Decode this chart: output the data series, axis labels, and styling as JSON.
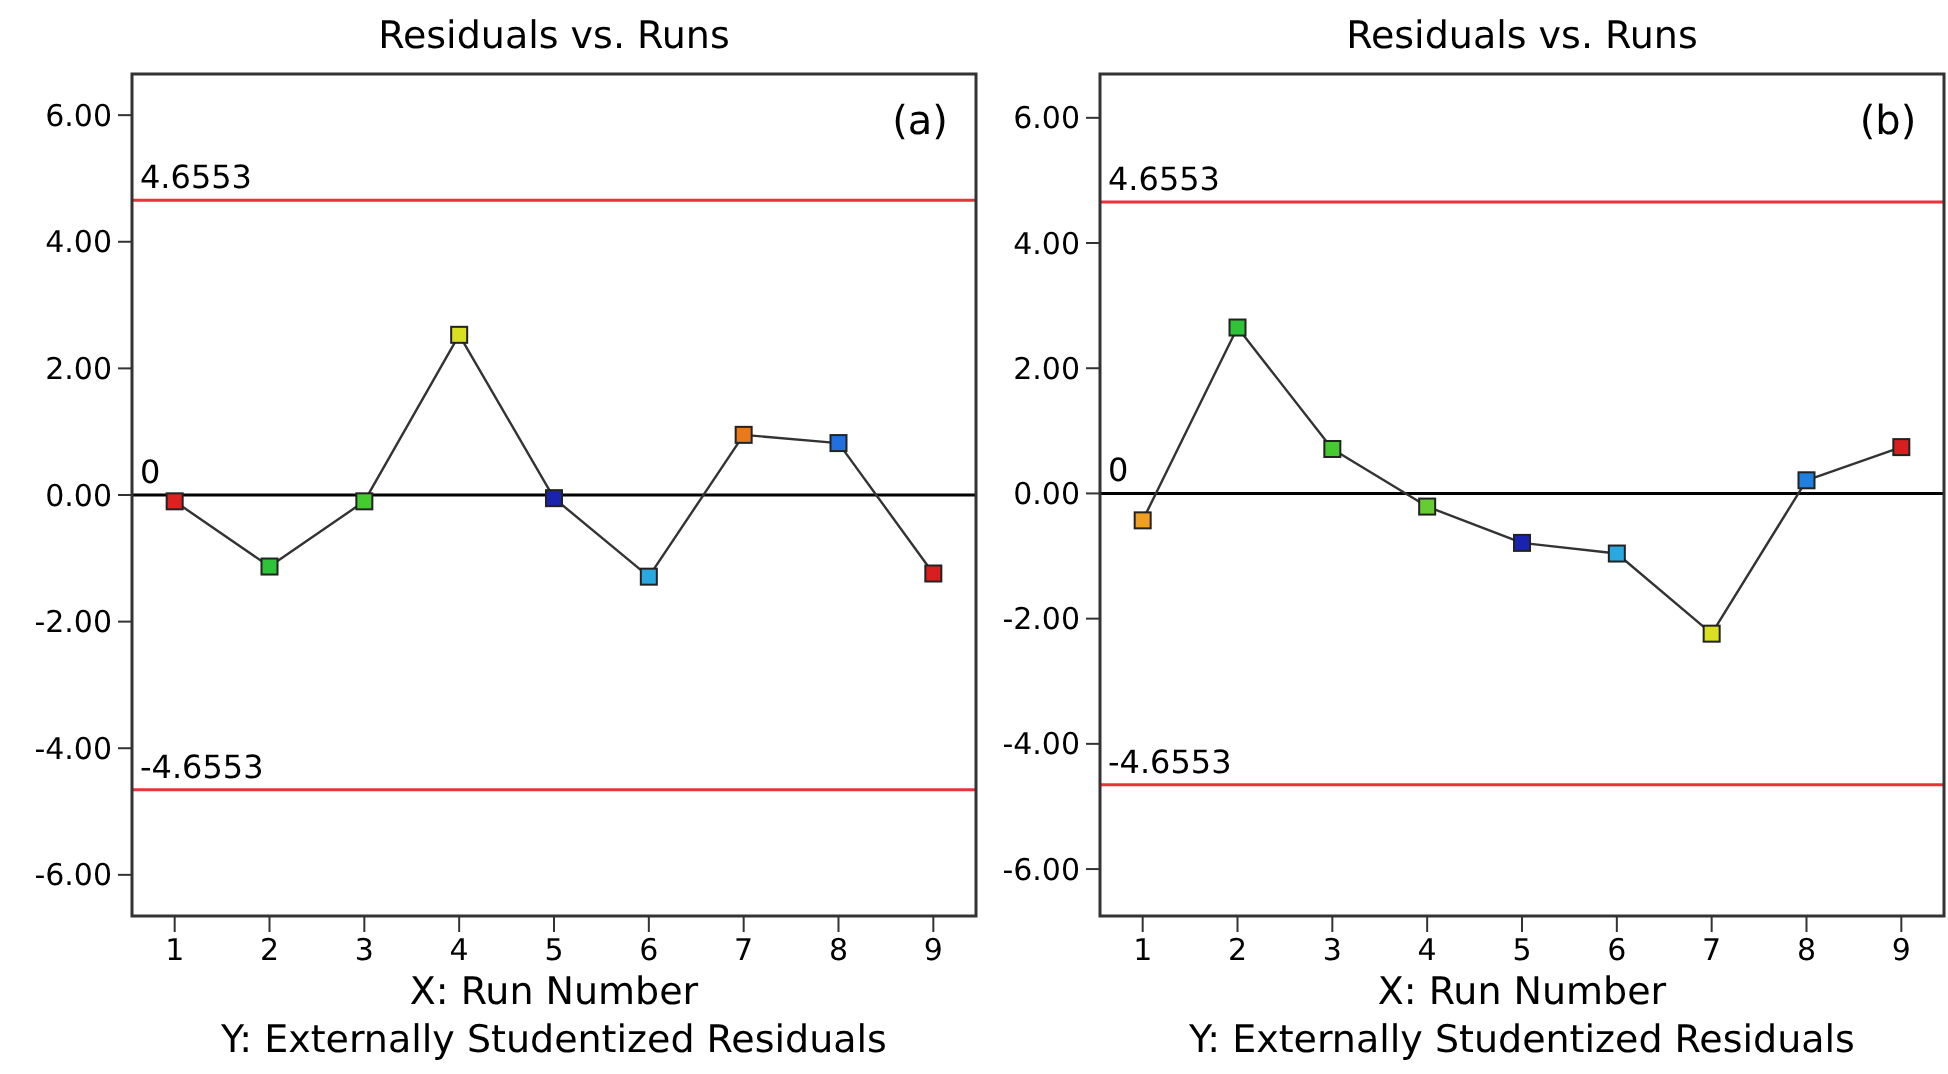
{
  "chart_data": [
    {
      "type": "line",
      "title": "Residuals vs. Runs",
      "xlabel": "X: Run Number",
      "annotations": [
        "(a)",
        "Y: Externally Studentized Residuals"
      ],
      "x": [
        1,
        2,
        3,
        4,
        5,
        6,
        7,
        8,
        9
      ],
      "series": [
        {
          "color": "#333333",
          "colors": [
            "#e0201e",
            "#2ec43a",
            "#44cc2e",
            "#d8e020",
            "#1a22b0",
            "#2aa8e0",
            "#e87a1a",
            "#2070e0",
            "#d81e1e"
          ],
          "values": [
            -0.1,
            -1.13,
            -0.1,
            2.53,
            -0.05,
            -1.29,
            0.95,
            0.82,
            -1.24
          ]
        }
      ],
      "marker": "square",
      "line_style": "solid",
      "xlim": [
        0.55,
        9.45
      ],
      "xticks": [
        1,
        2,
        3,
        4,
        5,
        6,
        7,
        8,
        9
      ],
      "ylim": [
        -6.65,
        6.65
      ],
      "yticks": [
        {
          "value": -6,
          "label": "-6.00"
        },
        {
          "value": -4,
          "label": "-4.00"
        },
        {
          "value": -2,
          "label": "-2.00"
        },
        {
          "value": 0,
          "label": "0.00"
        },
        {
          "value": 2,
          "label": "2.00"
        },
        {
          "value": 4,
          "label": "4.00"
        },
        {
          "value": 6,
          "label": "6.00"
        }
      ],
      "ref_lines": [
        {
          "axis": "y",
          "value": 4.6553,
          "label": "4.6553",
          "color": "#e8333a"
        },
        {
          "axis": "y",
          "value": 0,
          "label": "0",
          "color": "#000000"
        },
        {
          "axis": "y",
          "value": -4.6553,
          "label": "-4.6553",
          "color": "#e8333a"
        }
      ]
    },
    {
      "type": "line",
      "title": "Residuals vs. Runs",
      "xlabel": "X: Run Number",
      "annotations": [
        "(b)",
        "Y: Externally Studentized Residuals"
      ],
      "x": [
        1,
        2,
        3,
        4,
        5,
        6,
        7,
        8,
        9
      ],
      "series": [
        {
          "color": "#333333",
          "colors": [
            "#f0a020",
            "#2ec43a",
            "#44cc2e",
            "#66cc33",
            "#1a22b0",
            "#2aa8e0",
            "#d8e020",
            "#2080e0",
            "#d81e1e"
          ],
          "values": [
            -0.43,
            2.65,
            0.71,
            -0.21,
            -0.79,
            -0.96,
            -2.24,
            0.21,
            0.74
          ]
        }
      ],
      "marker": "square",
      "line_style": "solid",
      "xlim": [
        0.55,
        9.45
      ],
      "xticks": [
        1,
        2,
        3,
        4,
        5,
        6,
        7,
        8,
        9
      ],
      "ylim": [
        -6.75,
        6.7
      ],
      "yticks": [
        {
          "value": -6,
          "label": "-6.00"
        },
        {
          "value": -4,
          "label": "-4.00"
        },
        {
          "value": -2,
          "label": "-2.00"
        },
        {
          "value": 0,
          "label": "0.00"
        },
        {
          "value": 2,
          "label": "2.00"
        },
        {
          "value": 4,
          "label": "4.00"
        },
        {
          "value": 6,
          "label": "6.00"
        }
      ],
      "ref_lines": [
        {
          "axis": "y",
          "value": 4.6553,
          "label": "4.6553",
          "color": "#e8333a"
        },
        {
          "axis": "y",
          "value": 0,
          "label": "0",
          "color": "#000000"
        },
        {
          "axis": "y",
          "value": -4.6553,
          "label": "-4.6553",
          "color": "#e8333a"
        }
      ]
    }
  ]
}
